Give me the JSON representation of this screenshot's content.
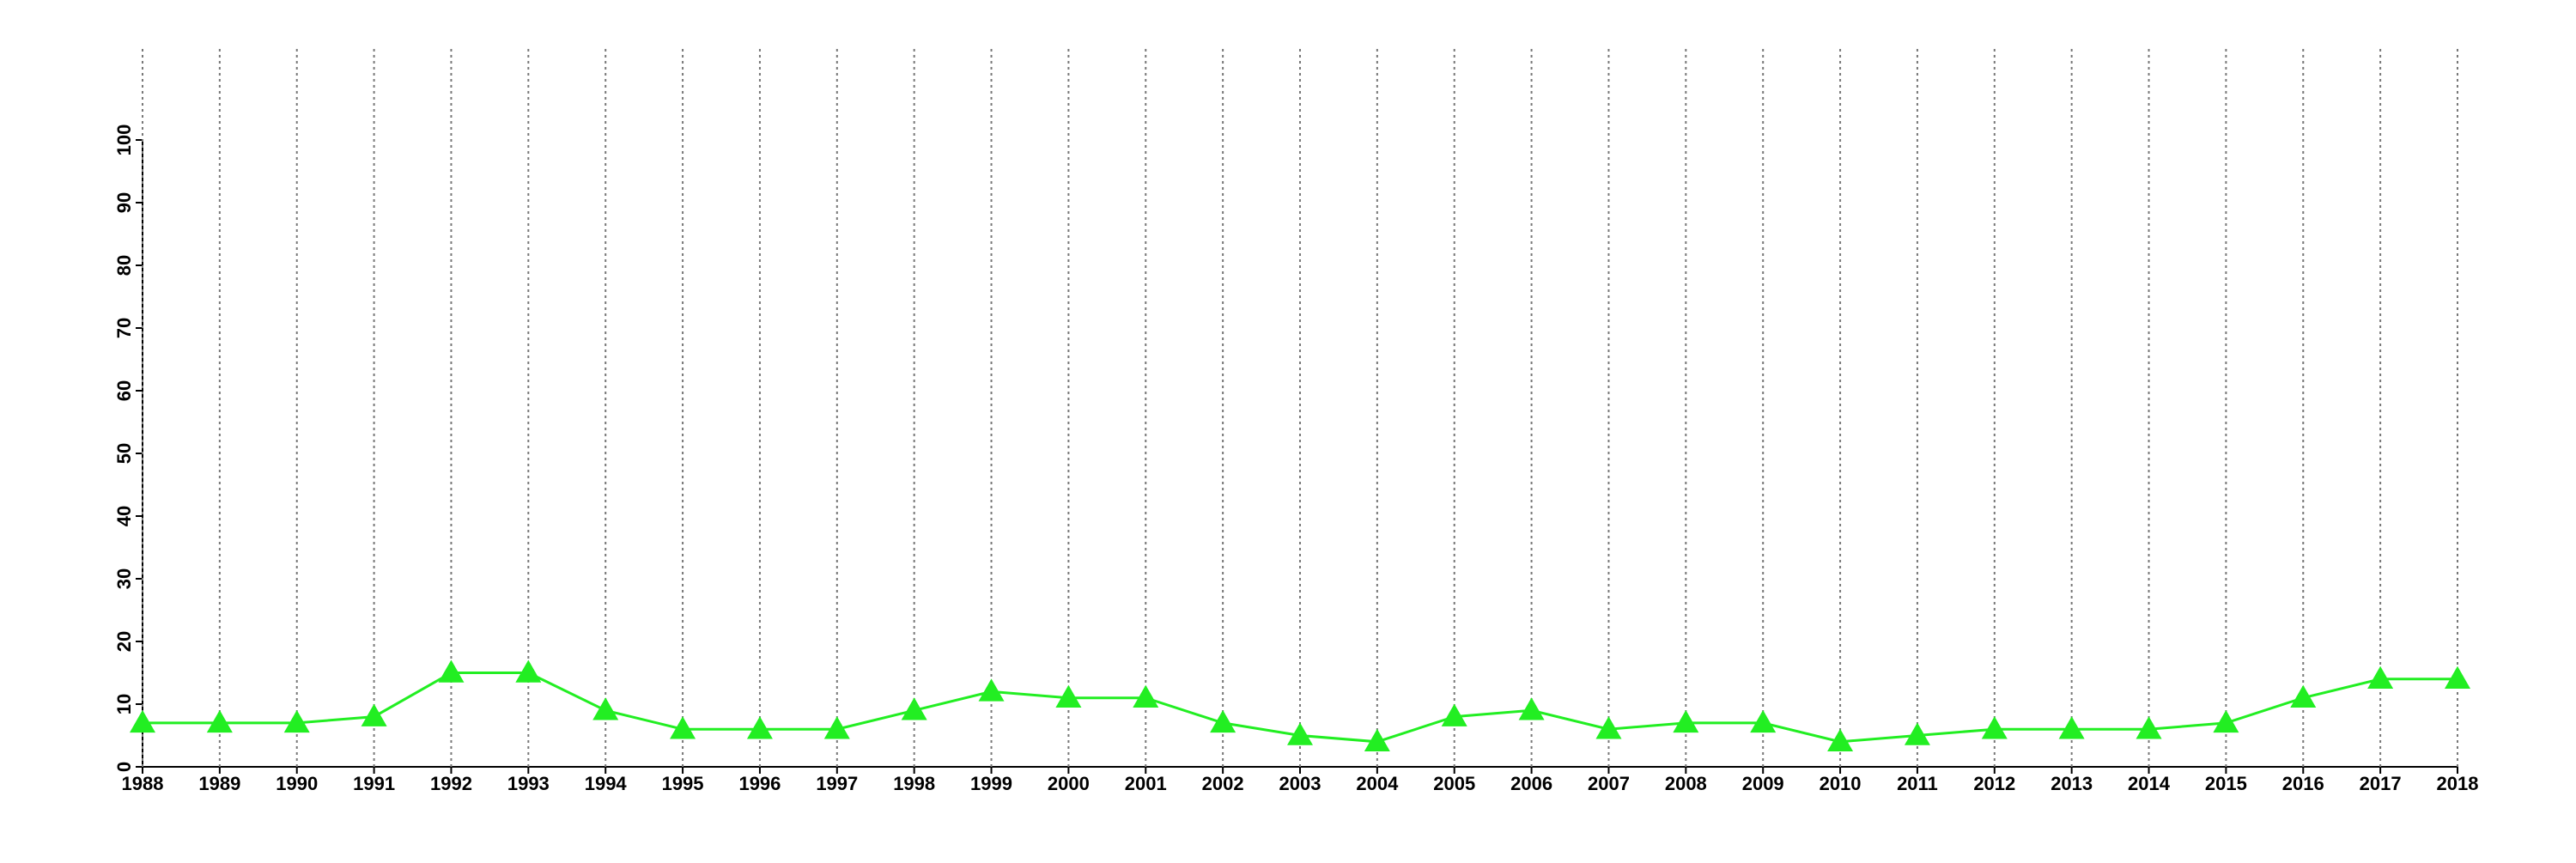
{
  "chart_data": {
    "type": "line",
    "x": [
      1988,
      1989,
      1990,
      1991,
      1992,
      1993,
      1994,
      1995,
      1996,
      1997,
      1998,
      1999,
      2000,
      2001,
      2002,
      2003,
      2004,
      2005,
      2006,
      2007,
      2008,
      2009,
      2010,
      2011,
      2012,
      2013,
      2014,
      2015,
      2016,
      2017,
      2018
    ],
    "values": [
      7,
      7,
      7,
      8,
      15,
      15,
      9,
      6,
      6,
      6,
      9,
      12,
      11,
      11,
      7,
      5,
      4,
      8,
      9,
      6,
      7,
      7,
      4,
      5,
      6,
      6,
      6,
      7,
      11,
      14,
      14
    ],
    "color": "#22ee22",
    "marker": "triangle",
    "xlim": [
      1988,
      2018
    ],
    "ylim": [
      0,
      100
    ],
    "yticks": [
      0,
      10,
      20,
      30,
      40,
      50,
      60,
      70,
      80,
      90,
      100
    ],
    "grid": "x"
  }
}
